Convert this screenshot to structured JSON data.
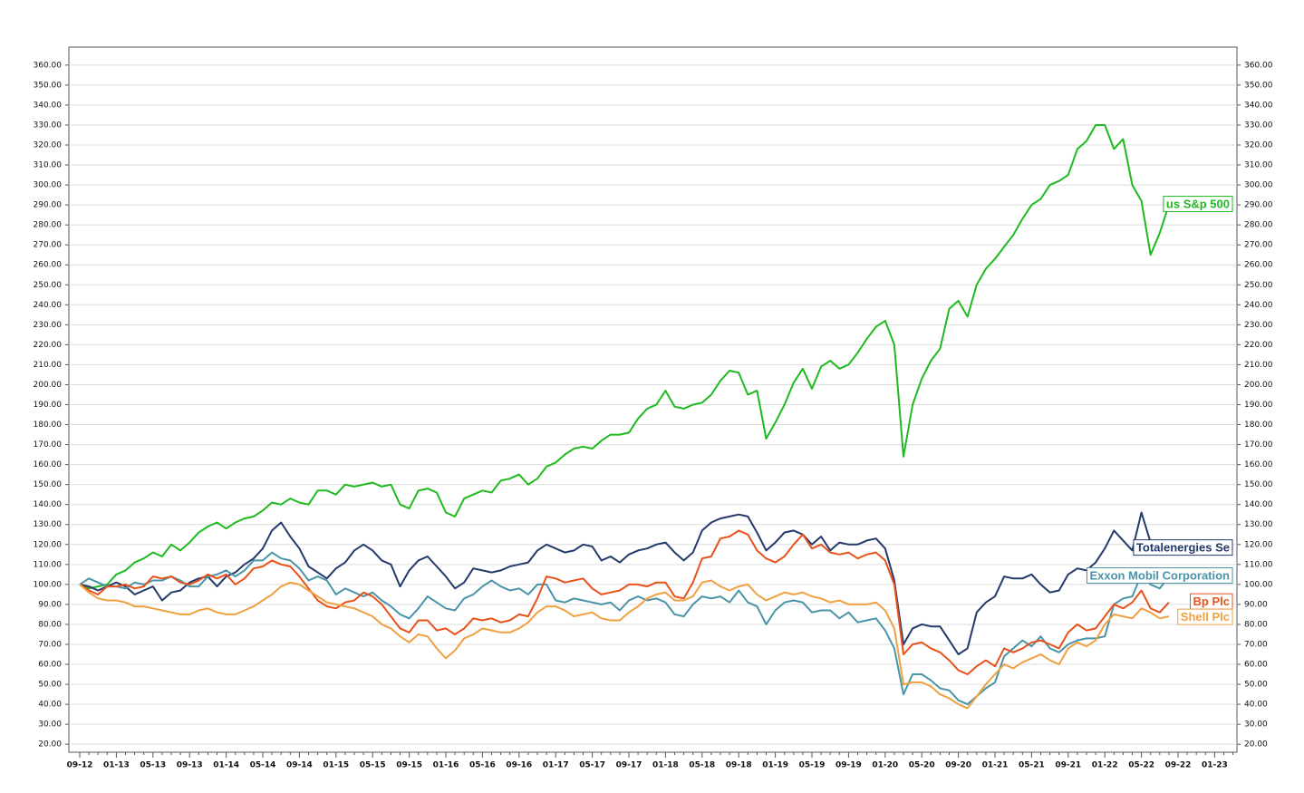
{
  "chart_data": {
    "type": "line",
    "categories": [
      "09-12",
      null,
      null,
      null,
      "01-13",
      null,
      null,
      null,
      "05-13",
      null,
      null,
      null,
      "09-13",
      null,
      null,
      null,
      "01-14",
      null,
      null,
      null,
      "05-14",
      null,
      null,
      null,
      "09-14",
      null,
      null,
      null,
      "01-15",
      null,
      null,
      null,
      "05-15",
      null,
      null,
      null,
      "09-15",
      null,
      null,
      null,
      "01-16",
      null,
      null,
      null,
      "05-16",
      null,
      null,
      null,
      "09-16",
      null,
      null,
      null,
      "01-17",
      null,
      null,
      null,
      "05-17",
      null,
      null,
      null,
      "09-17",
      null,
      null,
      null,
      "01-18",
      null,
      null,
      null,
      "05-18",
      null,
      null,
      null,
      "09-18",
      null,
      null,
      null,
      "01-19",
      null,
      null,
      null,
      "05-19",
      null,
      null,
      null,
      "09-19",
      null,
      null,
      null,
      "01-20",
      null,
      null,
      null,
      "05-20",
      null,
      null,
      null,
      "09-20",
      null,
      null,
      null,
      "01-21",
      null,
      null,
      null,
      "05-21",
      null,
      null,
      null,
      "09-21",
      null,
      null,
      null,
      "01-22",
      null,
      null,
      null,
      "05-22",
      null,
      null,
      null,
      "09-22",
      null,
      null,
      null,
      "01-23",
      null,
      null
    ],
    "series": [
      {
        "name": "us S&p 500",
        "color": "#1fba1f",
        "values": [
          100,
          98,
          99,
          100,
          105,
          107,
          111,
          113,
          116,
          114,
          120,
          117,
          121,
          126,
          129,
          131,
          128,
          131,
          133,
          134,
          137,
          141,
          140,
          143,
          141,
          140,
          147,
          147,
          145,
          150,
          149,
          150,
          151,
          149,
          150,
          140,
          138,
          147,
          148,
          146,
          136,
          134,
          143,
          145,
          147,
          146,
          152,
          153,
          155,
          150,
          153,
          159,
          161,
          165,
          168,
          169,
          168,
          172,
          175,
          175,
          176,
          183,
          188,
          190,
          197,
          189,
          188,
          190,
          191,
          195,
          202,
          207,
          206,
          195,
          197,
          173,
          181,
          190,
          201,
          208,
          198,
          209,
          212,
          208,
          210,
          216,
          223,
          229,
          232,
          220,
          164,
          190,
          203,
          212,
          218,
          238,
          242,
          234,
          250,
          258,
          263,
          269,
          275,
          283,
          290,
          293,
          300,
          302,
          305,
          318,
          322,
          330,
          330,
          318,
          323,
          300,
          292,
          265,
          276,
          290,
          null,
          null,
          null,
          null,
          null,
          null,
          null
        ]
      },
      {
        "name": "Totalenergies Se",
        "color": "#243a6b",
        "values": [
          100,
          99,
          97,
          99,
          101,
          99,
          95,
          97,
          99,
          92,
          96,
          97,
          101,
          103,
          104,
          99,
          104,
          106,
          110,
          113,
          118,
          127,
          131,
          124,
          118,
          109,
          106,
          103,
          108,
          111,
          117,
          120,
          117,
          112,
          110,
          99,
          107,
          112,
          114,
          109,
          104,
          98,
          101,
          108,
          107,
          106,
          107,
          109,
          110,
          111,
          117,
          120,
          118,
          116,
          117,
          120,
          119,
          112,
          114,
          111,
          115,
          117,
          118,
          120,
          121,
          116,
          112,
          116,
          127,
          131,
          133,
          134,
          135,
          134,
          126,
          117,
          121,
          126,
          127,
          125,
          120,
          124,
          117,
          121,
          120,
          120,
          122,
          123,
          118,
          102,
          70,
          78,
          80,
          79,
          79,
          72,
          65,
          68,
          86,
          91,
          94,
          104,
          103,
          103,
          105,
          100,
          96,
          97,
          105,
          108,
          107,
          111,
          118,
          127,
          122,
          117,
          136,
          121,
          120,
          118,
          null,
          null,
          null,
          null,
          null,
          null,
          null
        ]
      },
      {
        "name": "Exxon Mobil Corporation",
        "color": "#4a94a8",
        "values": [
          100,
          103,
          101,
          99,
          99,
          98,
          101,
          100,
          102,
          102,
          104,
          102,
          99,
          99,
          104,
          105,
          107,
          104,
          107,
          112,
          112,
          116,
          113,
          112,
          108,
          102,
          104,
          102,
          95,
          98,
          96,
          94,
          96,
          92,
          89,
          85,
          83,
          88,
          94,
          91,
          88,
          87,
          93,
          95,
          99,
          102,
          99,
          97,
          98,
          95,
          100,
          100,
          92,
          91,
          93,
          92,
          91,
          90,
          91,
          87,
          92,
          94,
          92,
          93,
          91,
          85,
          84,
          90,
          94,
          93,
          94,
          91,
          97,
          91,
          89,
          80,
          87,
          91,
          92,
          91,
          86,
          87,
          87,
          83,
          86,
          81,
          82,
          83,
          77,
          68,
          45,
          55,
          55,
          52,
          48,
          47,
          42,
          40,
          44,
          48,
          51,
          64,
          68,
          72,
          69,
          74,
          68,
          66,
          70,
          72,
          73,
          73,
          74,
          90,
          93,
          94,
          105,
          100,
          98,
          104,
          null,
          null,
          null,
          null,
          null,
          null,
          null
        ]
      },
      {
        "name": "Bp Plc",
        "color": "#e8521a",
        "values": [
          100,
          97,
          95,
          99,
          99,
          100,
          98,
          99,
          104,
          103,
          104,
          101,
          100,
          102,
          105,
          103,
          105,
          100,
          103,
          108,
          109,
          112,
          110,
          109,
          104,
          98,
          92,
          89,
          88,
          91,
          92,
          96,
          94,
          90,
          84,
          78,
          76,
          82,
          82,
          77,
          78,
          75,
          78,
          83,
          82,
          83,
          81,
          82,
          85,
          84,
          93,
          104,
          103,
          101,
          102,
          103,
          98,
          95,
          96,
          97,
          100,
          100,
          99,
          101,
          101,
          94,
          93,
          101,
          113,
          114,
          123,
          124,
          127,
          125,
          117,
          113,
          111,
          114,
          120,
          125,
          118,
          120,
          116,
          115,
          116,
          113,
          115,
          116,
          112,
          100,
          65,
          70,
          71,
          68,
          66,
          62,
          57,
          55,
          59,
          62,
          59,
          68,
          66,
          68,
          71,
          72,
          70,
          68,
          76,
          80,
          77,
          78,
          84,
          90,
          88,
          91,
          97,
          88,
          86,
          91,
          null,
          null,
          null,
          null,
          null,
          null,
          null
        ]
      },
      {
        "name": "Shell Plc",
        "color": "#f0a040",
        "values": [
          100,
          96,
          93,
          92,
          92,
          91,
          89,
          89,
          88,
          87,
          86,
          85,
          85,
          87,
          88,
          86,
          85,
          85,
          87,
          89,
          92,
          95,
          99,
          101,
          100,
          97,
          94,
          91,
          90,
          89,
          88,
          86,
          84,
          80,
          78,
          74,
          71,
          75,
          74,
          68,
          63,
          67,
          73,
          75,
          78,
          77,
          76,
          76,
          78,
          81,
          86,
          89,
          89,
          87,
          84,
          85,
          86,
          83,
          82,
          82,
          86,
          89,
          93,
          95,
          96,
          92,
          92,
          94,
          101,
          102,
          99,
          97,
          99,
          100,
          95,
          92,
          94,
          96,
          95,
          96,
          94,
          93,
          91,
          92,
          90,
          90,
          90,
          91,
          87,
          78,
          50,
          51,
          51,
          49,
          45,
          43,
          40,
          38,
          44,
          50,
          55,
          60,
          58,
          61,
          63,
          65,
          62,
          60,
          68,
          71,
          69,
          72,
          80,
          85,
          84,
          83,
          88,
          86,
          83,
          84,
          null,
          null,
          null,
          null,
          null,
          null,
          null
        ]
      }
    ],
    "ylim": [
      16,
      369
    ],
    "yticks": [
      {
        "value": 20,
        "label": "20.00"
      },
      {
        "value": 30,
        "label": "30.00"
      },
      {
        "value": 40,
        "label": "40.00"
      },
      {
        "value": 50,
        "label": "50.00"
      },
      {
        "value": 60,
        "label": "60.00"
      },
      {
        "value": 70,
        "label": "70.00"
      },
      {
        "value": 80,
        "label": "80.00"
      },
      {
        "value": 90,
        "label": "90.00"
      },
      {
        "value": 100,
        "label": "100.00"
      },
      {
        "value": 110,
        "label": "110.00"
      },
      {
        "value": 120,
        "label": "120.00"
      },
      {
        "value": 130,
        "label": "130.00"
      },
      {
        "value": 140,
        "label": "140.00"
      },
      {
        "value": 150,
        "label": "150.00"
      },
      {
        "value": 160,
        "label": "160.00"
      },
      {
        "value": 170,
        "label": "170.00"
      },
      {
        "value": 180,
        "label": "180.00"
      },
      {
        "value": 190,
        "label": "190.00"
      },
      {
        "value": 200,
        "label": "200.00"
      },
      {
        "value": 210,
        "label": "210.00"
      },
      {
        "value": 220,
        "label": "220.00"
      },
      {
        "value": 230,
        "label": "230.00"
      },
      {
        "value": 240,
        "label": "240.00"
      },
      {
        "value": 250,
        "label": "250.00"
      },
      {
        "value": 260,
        "label": "260.00"
      },
      {
        "value": 270,
        "label": "270.00"
      },
      {
        "value": 280,
        "label": "280.00"
      },
      {
        "value": 290,
        "label": "290.00"
      },
      {
        "value": 300,
        "label": "300.00"
      },
      {
        "value": 310,
        "label": "310.00"
      },
      {
        "value": 320,
        "label": "320.00"
      },
      {
        "value": 330,
        "label": "330.00"
      },
      {
        "value": 340,
        "label": "340.00"
      },
      {
        "value": 350,
        "label": "350.00"
      },
      {
        "value": 360,
        "label": "360.00"
      }
    ],
    "grid": true
  }
}
